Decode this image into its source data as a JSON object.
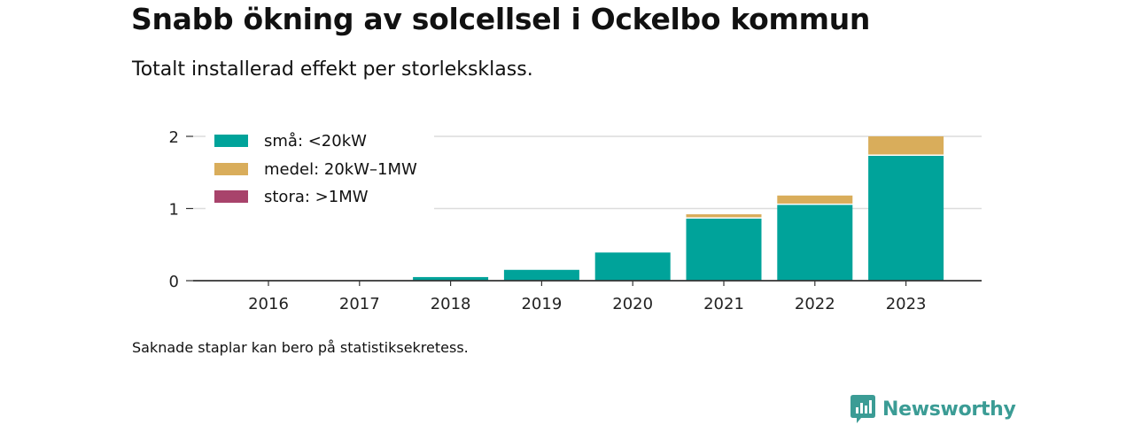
{
  "title": "Snabb ökning av solcellsel i Ockelbo kommun",
  "subtitle": "Totalt installerad effekt per storleksklass.",
  "footnote": "Saknade staplar kan bero på statistiksekretess.",
  "brand": {
    "name": "Newsworthy",
    "icon": "newsworthy-chart-icon",
    "color": "#3b9c95"
  },
  "chart_data": {
    "type": "bar",
    "stacked": true,
    "categories": [
      "2016",
      "2017",
      "2018",
      "2019",
      "2020",
      "2021",
      "2022",
      "2023"
    ],
    "series": [
      {
        "name": "små: <20kW",
        "color": "#00a39a",
        "values": [
          0,
          0,
          0.05,
          0.15,
          0.39,
          0.86,
          1.05,
          1.73
        ]
      },
      {
        "name": "medel: 20kW–1MW",
        "color": "#d9ad5b",
        "values": [
          0,
          0,
          0,
          0,
          0,
          0.06,
          0.13,
          0.27
        ]
      },
      {
        "name": "stora: >1MW",
        "color": "#a8436b",
        "values": [
          0,
          0,
          0,
          0,
          0,
          0,
          0,
          0
        ]
      }
    ],
    "y_ticks": [
      0,
      1,
      2
    ],
    "ylim": [
      0,
      2
    ],
    "grid": true,
    "legend_position": "top-left"
  }
}
